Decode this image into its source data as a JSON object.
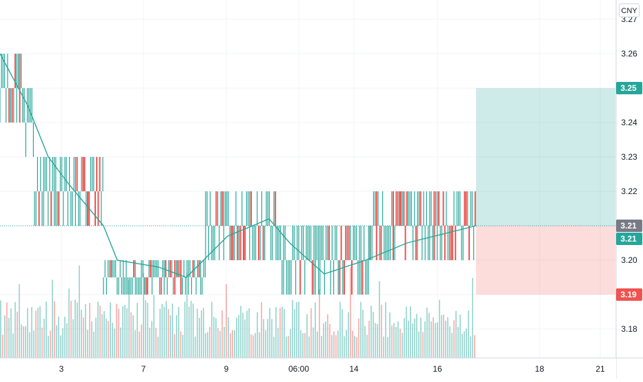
{
  "chart_data": {
    "type": "bar",
    "title": "",
    "currency": "CNY",
    "y_axis": {
      "range": [
        3.17,
        3.275
      ],
      "ticks": [
        "3.27",
        "3.26",
        "3.25",
        "3.24",
        "3.23",
        "3.22",
        "3.21",
        "3.20",
        "3.19",
        "3.18"
      ],
      "position": "right"
    },
    "x_axis": {
      "ticks": [
        "3",
        "7",
        "9",
        "06:00",
        "14",
        "16",
        "18",
        "21"
      ]
    },
    "price_bars": {
      "description_values": "OHLC bars at 0.01 tick size; each bar spans a full tick",
      "segments": [
        {
          "from_x": "start",
          "to_x": "3",
          "high": 3.26,
          "low": 3.24
        },
        {
          "from_x": "3",
          "to_x": "3",
          "high": 3.25,
          "low": 3.23
        },
        {
          "from_x": "3",
          "to_x": "7",
          "high": 3.23,
          "low": 3.21
        },
        {
          "from_x": "7",
          "to_x": "9",
          "high": 3.2,
          "low": 3.19
        },
        {
          "from_x": "9",
          "to_x": "06:00",
          "high": 3.22,
          "low": 3.2
        },
        {
          "from_x": "06:00",
          "to_x": "14",
          "high": 3.21,
          "low": 3.19
        },
        {
          "from_x": "14",
          "to_x": "16",
          "high": 3.22,
          "low": 3.2
        }
      ]
    },
    "moving_average": {
      "color": "#26a69a",
      "points": [
        [
          "start",
          3.26
        ],
        [
          "3",
          3.245
        ],
        [
          "3",
          3.23
        ],
        [
          "3",
          3.222
        ],
        [
          "7",
          3.21
        ],
        [
          "7",
          3.2
        ],
        [
          "9",
          3.198
        ],
        [
          "9",
          3.195
        ],
        [
          "9",
          3.207
        ],
        [
          "06:00",
          3.212
        ],
        [
          "06:00",
          3.205
        ],
        [
          "14",
          3.196
        ],
        [
          "14",
          3.2
        ],
        [
          "16",
          3.205
        ],
        [
          "16",
          3.21
        ]
      ]
    },
    "position_tool": {
      "entry": 3.21,
      "target": 3.25,
      "stop": 3.19,
      "profit_color": "#26a69a",
      "loss_color": "#ef5350"
    },
    "price_labels": [
      {
        "text": "3.25",
        "color": "#26a69a"
      },
      {
        "text": "3.21",
        "color": "#787b86"
      },
      {
        "text": "3.21",
        "color": "#26a69a"
      },
      {
        "text": "3.19",
        "color": "#ef5350"
      }
    ],
    "colors": {
      "up": "#26a69a",
      "down": "#ef5350",
      "grid": "#f0f3fa",
      "axis_text": "#131722"
    },
    "volume": {
      "shown": true,
      "up_color": "#26a69a",
      "down_color": "#ef5350"
    }
  }
}
